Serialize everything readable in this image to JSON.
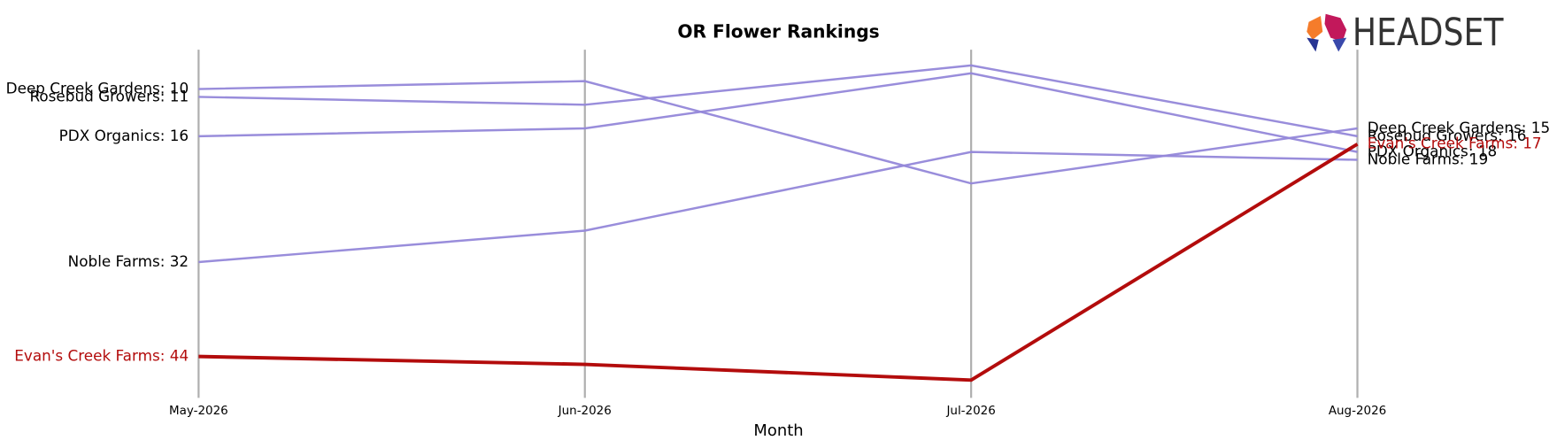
{
  "logo": "HEADSET",
  "chart_data": {
    "type": "bump",
    "title": "OR Flower Rankings",
    "x_label": "Month",
    "categories": [
      "May-2026",
      "Jun-2026",
      "Jul-2026",
      "Aug-2026"
    ],
    "ylim": [
      5,
      49
    ],
    "y_inverted": true,
    "grid": true,
    "series": [
      {
        "color": "#9487d9",
        "values": [
          10,
          9,
          22,
          15
        ],
        "value_labels": [
          "Deep Creek Gardens: 10",
          null,
          null,
          "Deep Creek Gardens: 15"
        ]
      },
      {
        "color": "#9487d9",
        "values": [
          11,
          12,
          7,
          16
        ],
        "value_labels": [
          "Rosebud Growers: 11",
          null,
          null,
          "Rosebud Growers: 16"
        ]
      },
      {
        "color": "#9487d9",
        "values": [
          16,
          15,
          8,
          18
        ],
        "value_labels": [
          "PDX Organics: 16",
          null,
          null,
          "PDX Organics: 18"
        ]
      },
      {
        "color": "#9487d9",
        "values": [
          32,
          28,
          18,
          19
        ],
        "value_labels": [
          "Noble Farms: 32",
          null,
          null,
          "Noble Farms: 19"
        ]
      },
      {
        "color": "#b30c0c",
        "values": [
          44,
          45,
          47,
          17
        ],
        "value_labels": [
          "Evan's Creek Farms: 44",
          null,
          null,
          "Evan's Creek Farms: 17"
        ]
      }
    ]
  }
}
